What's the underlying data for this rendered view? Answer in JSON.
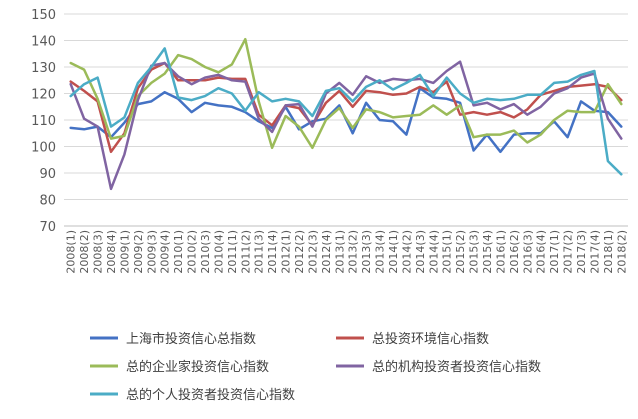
{
  "chart_data": {
    "type": "line",
    "title": "",
    "xlabel": "",
    "ylabel": "",
    "ylim": [
      70,
      150
    ],
    "yticks": [
      70,
      80,
      90,
      100,
      110,
      120,
      130,
      140,
      150
    ],
    "grid": "horizontal",
    "legend_position": "bottom",
    "x": [
      "2008(1)",
      "2008(2)",
      "2008(3)",
      "2008(4)",
      "2009(1)",
      "2009(2)",
      "2009(3)",
      "2009(4)",
      "2010(1)",
      "2010(2)",
      "2010(3)",
      "2010(4)",
      "2011(1)",
      "2011(2)",
      "2011(3)",
      "2011(4)",
      "2012(1)",
      "2012(2)",
      "2012(3)",
      "2012(4)",
      "2013(1)",
      "2013(2)",
      "2013(3)",
      "2013(4)",
      "2014(1)",
      "2014(2)",
      "2014(3)",
      "2014(4)",
      "2015(1)",
      "2015(2)",
      "2015(3)",
      "2015(4)",
      "2016(1)",
      "2016(2)",
      "2016(3)",
      "2016(4)",
      "2017(1)",
      "2017(2)",
      "2017(3)",
      "2017(4)",
      "2018(1)",
      "2018(2)"
    ],
    "series": [
      {
        "name": "上海市投资信心总指数",
        "color": "#4472C4",
        "values": [
          107,
          106.5,
          107.5,
          103.5,
          109,
          116,
          117,
          120.5,
          118,
          113,
          116.5,
          115.5,
          115,
          113,
          109.5,
          107,
          115,
          106.5,
          109.5,
          110.5,
          115.5,
          105,
          116.5,
          110,
          109.5,
          104.5,
          122,
          118.5,
          118,
          116.5,
          98.5,
          104.5,
          98,
          104.5,
          105,
          105,
          109.5,
          103.5,
          117,
          113.5,
          113,
          107.5
        ]
      },
      {
        "name": "总投资环境信心指数",
        "color": "#C0504D",
        "values": [
          124.5,
          121,
          117,
          98,
          105,
          122,
          129,
          131.5,
          125,
          125,
          125,
          126,
          125.5,
          125.5,
          112,
          108,
          115.5,
          114.5,
          108,
          116.5,
          121,
          115,
          121,
          120.5,
          119.5,
          120,
          122.5,
          120.5,
          124.5,
          112,
          113,
          112,
          113,
          111,
          114,
          119.5,
          121,
          122.5,
          123,
          123.5,
          122.5,
          117.5
        ]
      },
      {
        "name": "总的企业家投资信心指数",
        "color": "#9BBB59",
        "values": [
          131.5,
          129,
          118,
          103,
          104,
          119,
          124,
          127.5,
          134.5,
          133,
          130,
          128,
          131,
          140.5,
          117,
          99.5,
          111.5,
          107.5,
          99.5,
          110,
          114.5,
          107,
          114,
          113,
          111,
          111.5,
          112,
          115.5,
          112,
          115.5,
          103.5,
          104.5,
          104.5,
          106,
          101.5,
          104.5,
          110,
          113.5,
          113,
          113,
          123.5,
          116
        ]
      },
      {
        "name": "总的机构投资者投资信心指数",
        "color": "#8064A2",
        "values": [
          123.5,
          110.5,
          107.5,
          84,
          97,
          117.5,
          130.5,
          131.5,
          126.5,
          123.5,
          126,
          127,
          125,
          124.5,
          110.5,
          105.5,
          115.5,
          116,
          107.5,
          120,
          124,
          119.5,
          126.5,
          124,
          125.5,
          125,
          125.5,
          124,
          128.5,
          132,
          115.5,
          116.5,
          114,
          116,
          112,
          115,
          120,
          122,
          126,
          127.5,
          110.5,
          103
        ]
      },
      {
        "name": "总的个人投资者投资信心指数",
        "color": "#4BACC6",
        "values": [
          119,
          123.5,
          126,
          107.5,
          111,
          124,
          130,
          137,
          118.5,
          117.5,
          119,
          122,
          120,
          113.5,
          120.5,
          117,
          118,
          117,
          111.5,
          121,
          122,
          117,
          122.5,
          125,
          121.5,
          124,
          127,
          119,
          126,
          120,
          116.5,
          118,
          117.5,
          118,
          119.5,
          119.5,
          124,
          124.5,
          127,
          128.5,
          94.5,
          89.5
        ]
      }
    ]
  }
}
